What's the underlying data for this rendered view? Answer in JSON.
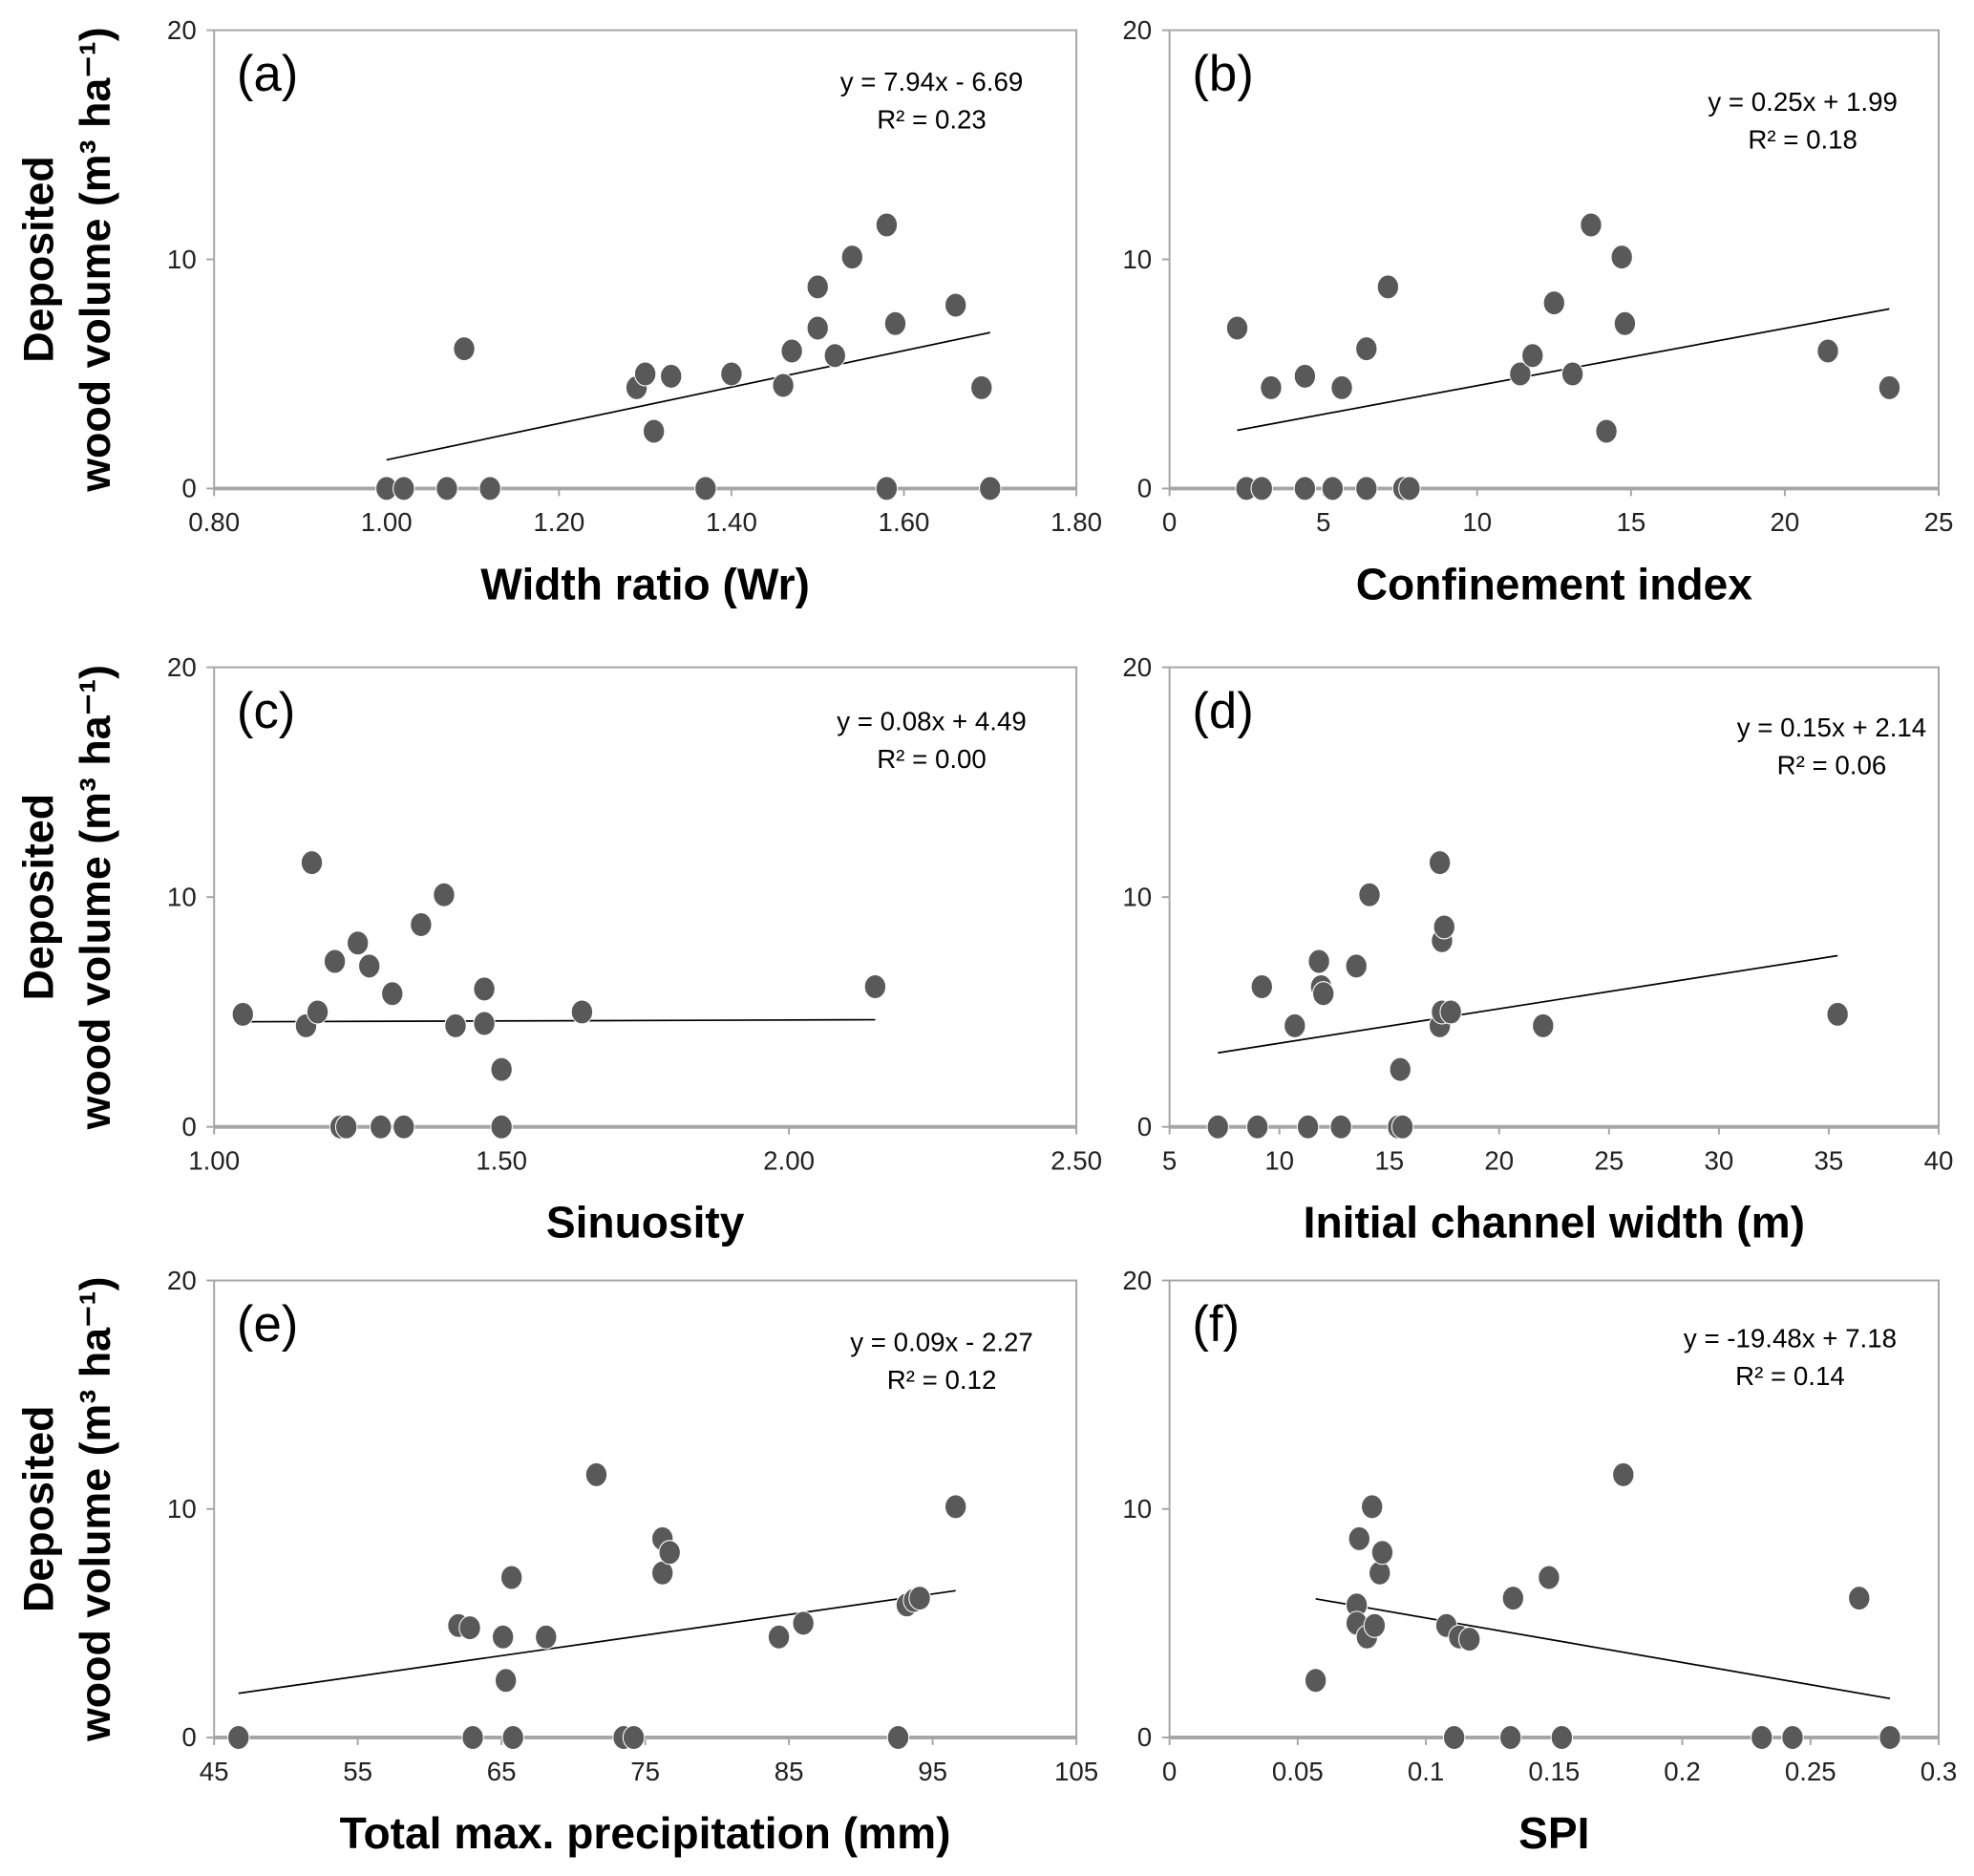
{
  "chart_data": [
    {
      "type": "scatter",
      "panel": "(a)",
      "xlabel": "Width ratio (Wr)",
      "ylabel_lines": [
        "Deposited",
        "wood volume (m³ ha⁻¹)"
      ],
      "xlim": [
        0.8,
        1.8
      ],
      "xticks": [
        "0.80",
        "1.00",
        "1.20",
        "1.40",
        "1.60",
        "1.80"
      ],
      "ylim": [
        0,
        20
      ],
      "yticks": [
        "0",
        "10",
        "20"
      ],
      "equation": "y = 7.94x - 6.69",
      "r2": "R² = 0.23",
      "trend": {
        "slope": 7.94,
        "intercept": -6.69,
        "x_range": [
          1.0,
          1.7
        ]
      },
      "x": [
        1.0,
        1.02,
        1.07,
        1.12,
        1.37,
        1.58,
        1.7,
        1.09,
        1.29,
        1.3,
        1.31,
        1.33,
        1.4,
        1.46,
        1.47,
        1.5,
        1.5,
        1.52,
        1.54,
        1.58,
        1.59,
        1.66,
        1.69
      ],
      "y": [
        0,
        0,
        0,
        0,
        0,
        0,
        0,
        6.1,
        4.4,
        5.0,
        2.5,
        4.9,
        5.0,
        4.5,
        6.0,
        8.8,
        7.0,
        5.8,
        10.1,
        11.5,
        7.2,
        8.0,
        4.4
      ]
    },
    {
      "type": "scatter",
      "panel": "(b)",
      "xlabel": "Confinement index",
      "ylabel_lines": [],
      "xlim": [
        0,
        25
      ],
      "xticks": [
        "0",
        "5",
        "10",
        "15",
        "20",
        "25"
      ],
      "ylim": [
        0,
        20
      ],
      "yticks": [
        "0",
        "10",
        "20"
      ],
      "equation": "y = 0.25x + 1.99",
      "r2": "R² = 0.18",
      "trend": {
        "slope": 0.25,
        "intercept": 1.99,
        "x_range": [
          2.2,
          23.4
        ]
      },
      "x": [
        2.2,
        2.5,
        3.0,
        3.3,
        4.4,
        4.4,
        5.3,
        5.6,
        6.4,
        6.4,
        7.1,
        7.6,
        7.8,
        11.4,
        11.8,
        12.5,
        13.1,
        13.7,
        14.2,
        14.7,
        14.8,
        21.4,
        23.4
      ],
      "y": [
        7.0,
        0,
        0,
        4.4,
        4.9,
        0,
        0,
        4.4,
        6.1,
        0,
        8.8,
        0,
        0,
        5.0,
        5.8,
        8.1,
        5.0,
        11.5,
        2.5,
        10.1,
        7.2,
        6.0,
        4.4
      ]
    },
    {
      "type": "scatter",
      "panel": "(c)",
      "xlabel": "Sinuosity",
      "ylabel_lines": [
        "Deposited",
        "wood volume (m³ ha⁻¹)"
      ],
      "xlim": [
        1.0,
        2.5
      ],
      "xticks": [
        "1.00",
        "1.50",
        "2.00",
        "2.50"
      ],
      "ylim": [
        0,
        20
      ],
      "yticks": [
        "0",
        "10",
        "20"
      ],
      "equation": "y = 0.08x + 4.49",
      "r2": "R² = 0.00",
      "trend": {
        "slope": 0.08,
        "intercept": 4.49,
        "x_range": [
          1.05,
          2.15
        ]
      },
      "x": [
        1.05,
        1.16,
        1.17,
        1.18,
        1.21,
        1.22,
        1.23,
        1.25,
        1.27,
        1.29,
        1.31,
        1.33,
        1.36,
        1.4,
        1.42,
        1.47,
        1.47,
        1.5,
        1.5,
        1.64,
        2.15
      ],
      "y": [
        4.9,
        4.4,
        11.5,
        5.0,
        7.2,
        0,
        0,
        8.0,
        7.0,
        0,
        5.8,
        0,
        8.8,
        10.1,
        4.4,
        4.5,
        6.0,
        2.5,
        0,
        5.0,
        6.1
      ]
    },
    {
      "type": "scatter",
      "panel": "(d)",
      "xlabel": "Initial channel width (m)",
      "ylabel_lines": [],
      "xlim": [
        5,
        40
      ],
      "xticks": [
        "5",
        "10",
        "15",
        "20",
        "25",
        "30",
        "35",
        "40"
      ],
      "ylim": [
        0,
        20
      ],
      "yticks": [
        "0",
        "10",
        "20"
      ],
      "equation": "y = 0.15x + 2.14",
      "r2": "R² = 0.06",
      "trend": {
        "slope": 0.15,
        "intercept": 2.14,
        "x_range": [
          7.2,
          35.4
        ]
      },
      "x": [
        7.2,
        9.0,
        9.2,
        10.7,
        11.3,
        11.8,
        11.9,
        12.0,
        12.8,
        13.5,
        14.1,
        15.4,
        15.5,
        15.6,
        17.3,
        17.3,
        17.4,
        17.4,
        17.5,
        17.8,
        22.0,
        35.4
      ],
      "y": [
        0,
        0,
        6.1,
        4.4,
        0,
        7.2,
        6.1,
        5.8,
        0,
        7.0,
        10.1,
        0,
        2.5,
        0,
        11.5,
        4.4,
        5.0,
        8.1,
        8.7,
        5.0,
        4.4,
        4.9
      ]
    },
    {
      "type": "scatter",
      "panel": "(e)",
      "xlabel": "Total max. precipitation (mm)",
      "ylabel_lines": [
        "Deposited",
        "wood volume (m³ ha⁻¹)"
      ],
      "xlim": [
        45,
        105
      ],
      "xticks": [
        "45",
        "55",
        "65",
        "75",
        "85",
        "95",
        "105"
      ],
      "ylim": [
        0,
        20
      ],
      "yticks": [
        "0",
        "10",
        "20"
      ],
      "equation": "y = 0.09x - 2.27",
      "r2": "R² = 0.12",
      "trend": {
        "slope": 0.09,
        "intercept": -2.27,
        "x_range": [
          46.7,
          96.6
        ]
      },
      "x": [
        46.7,
        62.0,
        62.8,
        63.0,
        65.1,
        65.3,
        65.7,
        65.8,
        68.1,
        71.6,
        73.5,
        74.2,
        76.2,
        76.2,
        76.7,
        84.3,
        86.0,
        92.6,
        93.2,
        93.7,
        94.1,
        96.6
      ],
      "y": [
        0,
        4.9,
        4.8,
        0,
        4.4,
        2.5,
        7.0,
        0,
        4.4,
        11.5,
        0,
        0,
        8.7,
        7.2,
        8.1,
        4.4,
        5.0,
        0,
        5.8,
        6.0,
        6.1,
        10.1
      ]
    },
    {
      "type": "scatter",
      "panel": "(f)",
      "xlabel": "SPI",
      "ylabel_lines": [],
      "xlim": [
        0,
        0.3
      ],
      "xticks": [
        "0",
        "0.05",
        "0.1",
        "0.15",
        "0.2",
        "0.25",
        "0.3"
      ],
      "ylim": [
        0,
        20
      ],
      "yticks": [
        "0",
        "10",
        "20"
      ],
      "equation": "y = -19.48x + 7.18",
      "r2": "R² = 0.14",
      "trend": {
        "slope": -19.48,
        "intercept": 7.18,
        "x_range": [
          0.057,
          0.281
        ]
      },
      "x": [
        0.057,
        0.073,
        0.073,
        0.074,
        0.077,
        0.079,
        0.08,
        0.082,
        0.083,
        0.108,
        0.111,
        0.113,
        0.117,
        0.133,
        0.134,
        0.148,
        0.153,
        0.177,
        0.231,
        0.243,
        0.269,
        0.281
      ],
      "y": [
        2.5,
        5.8,
        5.0,
        8.7,
        4.4,
        10.1,
        4.9,
        7.2,
        8.1,
        4.9,
        0,
        4.4,
        4.3,
        0,
        6.1,
        7.0,
        0,
        11.5,
        0,
        0,
        6.1,
        0
      ]
    }
  ],
  "colors": {
    "marker": "#595959",
    "axis": "#a6a6a6",
    "trend": "#000000"
  }
}
